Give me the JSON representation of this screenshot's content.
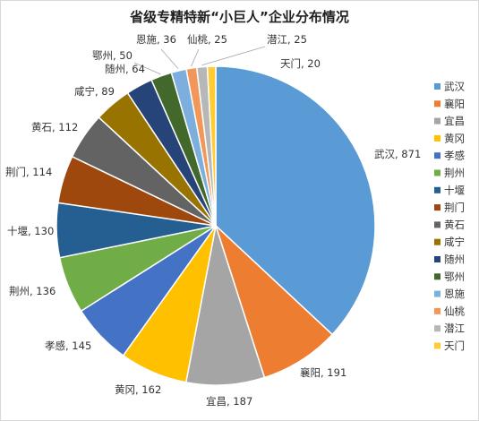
{
  "chart_data": {
    "type": "pie",
    "title": "省级专精特新“小巨人”企业分布情况",
    "legend": "right",
    "categories": [
      "武汉",
      "襄阳",
      "宜昌",
      "黄冈",
      "孝感",
      "荆州",
      "十堰",
      "荆门",
      "黄石",
      "咸宁",
      "随州",
      "鄂州",
      "恩施",
      "仙桃",
      "潜江",
      "天门"
    ],
    "values": [
      871,
      191,
      187,
      162,
      145,
      136,
      130,
      114,
      112,
      89,
      64,
      50,
      36,
      25,
      25,
      20
    ],
    "data_labels": [
      "武汉, 871",
      "襄阳, 191",
      "宜昌, 187",
      "黄冈, 162",
      "孝感, 145",
      "荆州, 136",
      "十堰, 130",
      "荆门, 114",
      "黄石, 112",
      "咸宁, 89",
      "随州, 64",
      "鄂州, 50",
      "恩施, 36",
      "仙桃, 25",
      "潜江, 25",
      "天门, 20"
    ],
    "colors": [
      "#5b9bd5",
      "#ed7d31",
      "#a5a5a5",
      "#ffc000",
      "#4472c4",
      "#70ad47",
      "#255e91",
      "#9e480e",
      "#636363",
      "#997300",
      "#264478",
      "#43682b",
      "#7cafdd",
      "#f1975a",
      "#b7b7b7",
      "#ffcd33"
    ]
  }
}
